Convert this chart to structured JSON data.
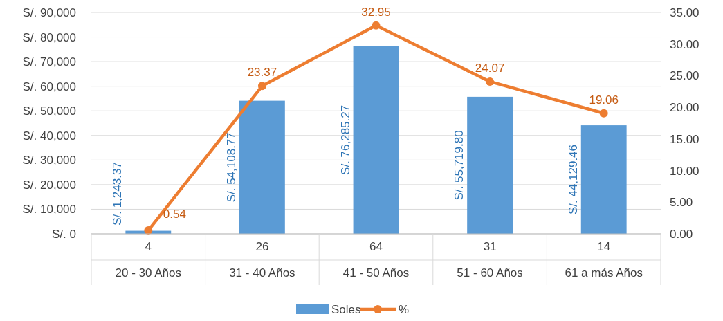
{
  "chart_data": {
    "type": "bar",
    "categories": [
      "4\n20 - 30 Años",
      "26\n31 - 40 Años",
      "64\n41 - 50 Años",
      "31\n51 - 60 Años",
      "14\n61 a más Años"
    ],
    "series": [
      {
        "name": "Soles",
        "color": "#5b9bd5",
        "values": [
          1243.37,
          54108.77,
          76285.27,
          55719.8,
          44129.46
        ],
        "value_labels": [
          "S/. 1,243.37",
          "S/. 54,108.77",
          "S/. 76,285.27",
          "S/. 55,719.80",
          "S/. 44,129.46"
        ]
      },
      {
        "name": "%",
        "type": "line",
        "axis": "y2",
        "color": "#ed7d31",
        "values": [
          0.54,
          23.37,
          32.95,
          24.07,
          19.06
        ],
        "value_labels": [
          "0.54",
          "23.37",
          "32.95",
          "24.07",
          "19.06"
        ]
      }
    ],
    "ylim": [
      0,
      90000
    ],
    "yticks": [
      {
        "value": 0,
        "label": "S/. 0"
      },
      {
        "value": 10000,
        "label": "S/. 10,000"
      },
      {
        "value": 20000,
        "label": "S/. 20,000"
      },
      {
        "value": 30000,
        "label": "S/. 30,000"
      },
      {
        "value": 40000,
        "label": "S/. 40,000"
      },
      {
        "value": 50000,
        "label": "S/. 50,000"
      },
      {
        "value": 60000,
        "label": "S/. 60,000"
      },
      {
        "value": 70000,
        "label": "S/. 70,000"
      },
      {
        "value": 80000,
        "label": "S/. 80,000"
      },
      {
        "value": 90000,
        "label": "S/. 90,000"
      }
    ],
    "y2lim": [
      0,
      35
    ],
    "y2ticks": [
      {
        "value": 0,
        "label": "0.00"
      },
      {
        "value": 5,
        "label": "5.00"
      },
      {
        "value": 10,
        "label": "10.00"
      },
      {
        "value": 15,
        "label": "15.00"
      },
      {
        "value": 20,
        "label": "20.00"
      },
      {
        "value": 25,
        "label": "25.00"
      },
      {
        "value": 30,
        "label": "30.00"
      },
      {
        "value": 35,
        "label": "35.00"
      }
    ],
    "grid": "y",
    "legend": "bottom",
    "marker": "circle",
    "line_style": "solid"
  }
}
